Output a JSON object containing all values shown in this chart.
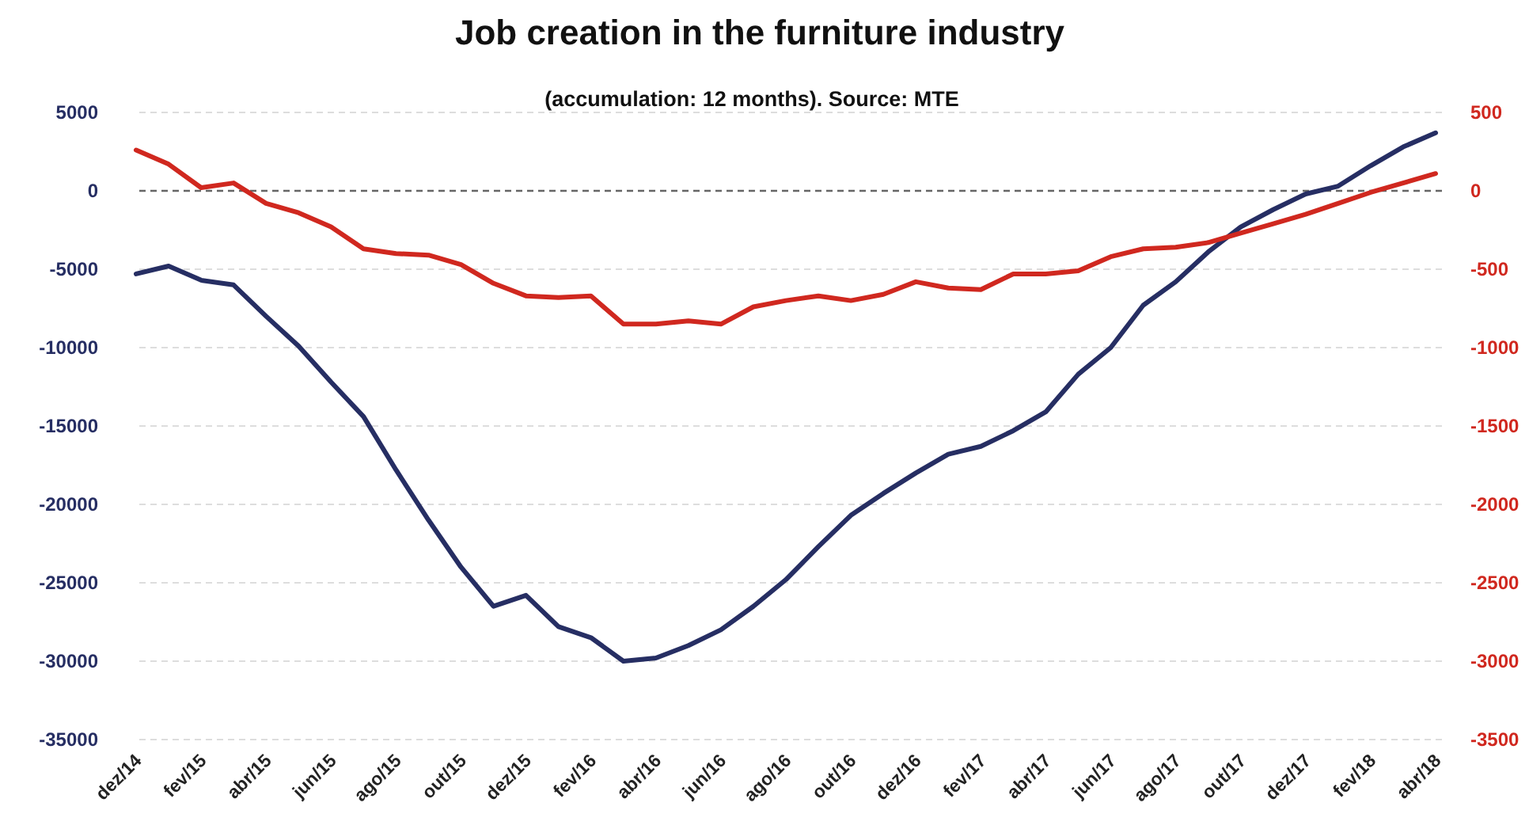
{
  "chart_data": {
    "type": "line",
    "title": "Job creation in the furniture industry",
    "subtitle": "(accumulation: 12 months). Source: MTE",
    "categories": [
      "dez/14",
      null,
      "fev/15",
      null,
      "abr/15",
      null,
      "jun/15",
      null,
      "ago/15",
      null,
      "out/15",
      null,
      "dez/15",
      null,
      "fev/16",
      null,
      "abr/16",
      null,
      "jun/16",
      null,
      "ago/16",
      null,
      "out/16",
      null,
      "dez/16",
      null,
      "fev/17",
      null,
      "abr/17",
      null,
      "jun/17",
      null,
      "ago/17",
      null,
      "out/17",
      null,
      "dez/17",
      null,
      "fev/18",
      null,
      "abr/18"
    ],
    "series": [
      {
        "color": "#262e63",
        "values": [
          -5300,
          -4800,
          -5700,
          -6000,
          -8000,
          -9900,
          -12200,
          -14400,
          -17800,
          -21000,
          -24000,
          -26500,
          -25800,
          -27800,
          -28500,
          -30000,
          -29800,
          -29000,
          -28000,
          -26500,
          -24800,
          -22700,
          -20700,
          -19300,
          -18000,
          -16800,
          -16300,
          -15300,
          -14100,
          -11700,
          -10000,
          -7300,
          -5800,
          -3900,
          -2300,
          -1200,
          -200,
          300,
          1600,
          2800,
          3700
        ]
      },
      {
        "color": "#d0281f",
        "axis": "y2",
        "values": [
          260,
          170,
          20,
          50,
          -80,
          -140,
          -230,
          -370,
          -400,
          -410,
          -470,
          -590,
          -670,
          -680,
          -670,
          -850,
          -850,
          -830,
          -850,
          -740,
          -700,
          -670,
          -700,
          -660,
          -580,
          -620,
          -630,
          -530,
          -530,
          -510,
          -420,
          -370,
          -360,
          -330,
          -270,
          -210,
          -150,
          -80,
          -10,
          50,
          110
        ]
      }
    ],
    "ylim": [
      -35000,
      5000
    ],
    "yticks": [
      -35000,
      -30000,
      -25000,
      -20000,
      -15000,
      -10000,
      -5000,
      0,
      5000
    ],
    "y2lim": [
      -3500,
      500
    ],
    "y2ticks": [
      -3500,
      -3000,
      -2500,
      -2000,
      -1500,
      -1000,
      -500,
      0,
      500
    ],
    "ref_lines": [
      {
        "axis": "y",
        "value": 0,
        "color": "#666666",
        "line_style": "dashed"
      }
    ],
    "grid": "y",
    "marker": "none",
    "line_style": "solid"
  }
}
